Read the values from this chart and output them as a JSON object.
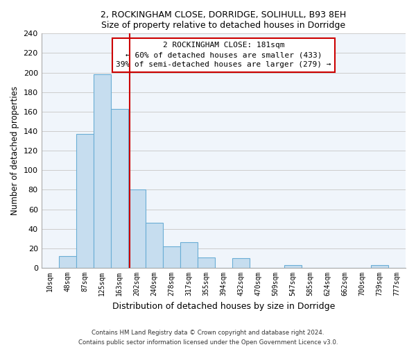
{
  "title1": "2, ROCKINGHAM CLOSE, DORRIDGE, SOLIHULL, B93 8EH",
  "title2": "Size of property relative to detached houses in Dorridge",
  "xlabel": "Distribution of detached houses by size in Dorridge",
  "ylabel": "Number of detached properties",
  "bar_labels": [
    "10sqm",
    "48sqm",
    "87sqm",
    "125sqm",
    "163sqm",
    "202sqm",
    "240sqm",
    "278sqm",
    "317sqm",
    "355sqm",
    "394sqm",
    "432sqm",
    "470sqm",
    "509sqm",
    "547sqm",
    "585sqm",
    "624sqm",
    "662sqm",
    "700sqm",
    "739sqm",
    "777sqm"
  ],
  "bar_values": [
    0,
    12,
    137,
    198,
    163,
    80,
    46,
    22,
    26,
    11,
    0,
    10,
    0,
    0,
    3,
    0,
    0,
    0,
    0,
    3,
    0
  ],
  "bar_color": "#c6ddef",
  "bar_edge_color": "#6aadd5",
  "vline_x": 4.58,
  "vline_color": "#cc0000",
  "annotation_title": "2 ROCKINGHAM CLOSE: 181sqm",
  "annotation_line1": "← 60% of detached houses are smaller (433)",
  "annotation_line2": "39% of semi-detached houses are larger (279) →",
  "annotation_box_color": "white",
  "annotation_box_edge": "#cc0000",
  "footnote1": "Contains HM Land Registry data © Crown copyright and database right 2024.",
  "footnote2": "Contains public sector information licensed under the Open Government Licence v3.0.",
  "ylim": [
    0,
    240
  ],
  "yticks": [
    0,
    20,
    40,
    60,
    80,
    100,
    120,
    140,
    160,
    180,
    200,
    220,
    240
  ],
  "bg_color": "#f0f4f8"
}
